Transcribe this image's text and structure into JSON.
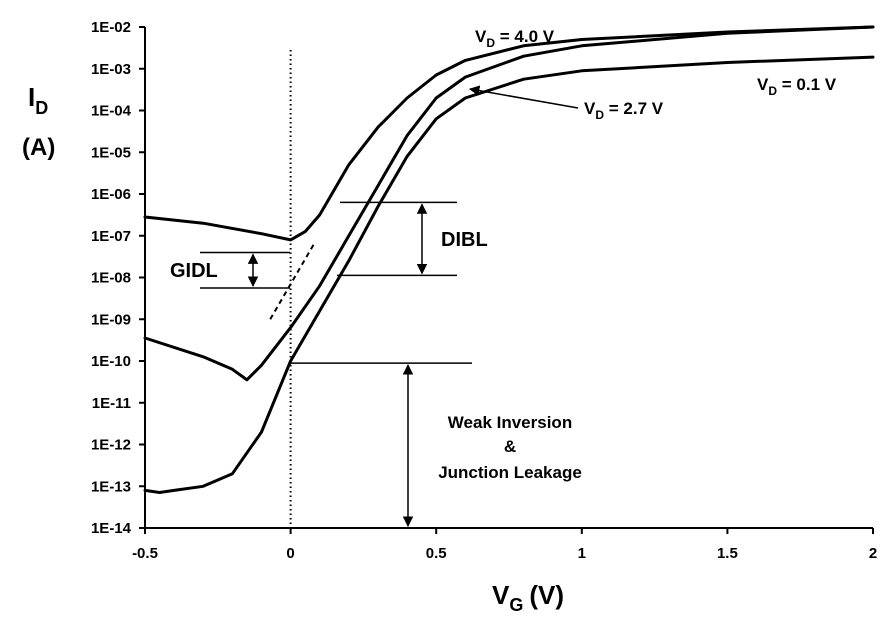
{
  "chart_data": {
    "type": "line",
    "title": "",
    "xlabel": "V",
    "xlabel_sub": "G",
    "xlabel_unit": "(V)",
    "ylabel": "I",
    "ylabel_sub": "D",
    "ylabel_unit": "(A)",
    "xlim": [
      -0.5,
      2
    ],
    "ylim_log10": [
      -14,
      -2
    ],
    "y_scale": "log",
    "x_ticks": [
      -0.5,
      0,
      0.5,
      1,
      1.5,
      2
    ],
    "x_tick_labels": [
      "-0.5",
      "0",
      "0.5",
      "1",
      "1.5",
      "2"
    ],
    "y_tick_labels": [
      "1E-14",
      "1E-13",
      "1E-12",
      "1E-11",
      "1E-10",
      "1E-09",
      "1E-08",
      "1E-07",
      "1E-06",
      "1E-05",
      "1E-04",
      "1E-03",
      "1E-02"
    ],
    "series": [
      {
        "name": "VD = 4.0 V",
        "label_main": "V",
        "label_sub": "D",
        "label_value": " = 4.0 V",
        "points_log10": [
          [
            -0.5,
            -6.55
          ],
          [
            -0.3,
            -6.7
          ],
          [
            -0.1,
            -6.95
          ],
          [
            0,
            -7.1
          ],
          [
            0.05,
            -6.9
          ],
          [
            0.1,
            -6.5
          ],
          [
            0.2,
            -5.3
          ],
          [
            0.3,
            -4.4
          ],
          [
            0.4,
            -3.7
          ],
          [
            0.5,
            -3.15
          ],
          [
            0.6,
            -2.8
          ],
          [
            0.8,
            -2.45
          ],
          [
            1.0,
            -2.3
          ],
          [
            1.5,
            -2.12
          ],
          [
            2.0,
            -2.0
          ]
        ]
      },
      {
        "name": "VD = 2.7 V",
        "label_main": "V",
        "label_sub": "D",
        "label_value": " = 2.7 V",
        "points_log10": [
          [
            -0.5,
            -9.45
          ],
          [
            -0.3,
            -9.9
          ],
          [
            -0.2,
            -10.2
          ],
          [
            -0.15,
            -10.45
          ],
          [
            -0.1,
            -10.1
          ],
          [
            0,
            -9.2
          ],
          [
            0.1,
            -8.2
          ],
          [
            0.2,
            -7.0
          ],
          [
            0.3,
            -5.8
          ],
          [
            0.4,
            -4.6
          ],
          [
            0.5,
            -3.7
          ],
          [
            0.6,
            -3.2
          ],
          [
            0.8,
            -2.7
          ],
          [
            1.0,
            -2.45
          ],
          [
            1.5,
            -2.15
          ],
          [
            2.0,
            -2.0
          ]
        ]
      },
      {
        "name": "VD = 0.1 V",
        "label_main": "V",
        "label_sub": "D",
        "label_value": " = 0.1 V",
        "points_log10": [
          [
            -0.5,
            -13.1
          ],
          [
            -0.45,
            -13.15
          ],
          [
            -0.4,
            -13.1
          ],
          [
            -0.3,
            -13.0
          ],
          [
            -0.2,
            -12.7
          ],
          [
            -0.1,
            -11.7
          ],
          [
            0,
            -10.0
          ],
          [
            0.1,
            -8.8
          ],
          [
            0.2,
            -7.6
          ],
          [
            0.3,
            -6.3
          ],
          [
            0.4,
            -5.1
          ],
          [
            0.5,
            -4.2
          ],
          [
            0.6,
            -3.7
          ],
          [
            0.8,
            -3.25
          ],
          [
            1.0,
            -3.05
          ],
          [
            1.5,
            -2.85
          ],
          [
            2.0,
            -2.72
          ]
        ]
      }
    ],
    "annotations": {
      "gidl": "GIDL",
      "dibl": "DIBL",
      "weak_line1": "Weak Inversion",
      "weak_line2": "&",
      "weak_line3": "Junction Leakage"
    },
    "vertical_reference_x": 0,
    "gidl_extrapolation_log10": [
      [
        -0.07,
        -9.0
      ],
      [
        0.08,
        -7.2
      ]
    ],
    "marker_levels_log10": {
      "gidl_top": -7.4,
      "gidl_bottom": -8.25,
      "dibl_top": -6.2,
      "dibl_bottom": -7.95,
      "weak_top": -10.05,
      "weak_bottom": -14
    }
  }
}
